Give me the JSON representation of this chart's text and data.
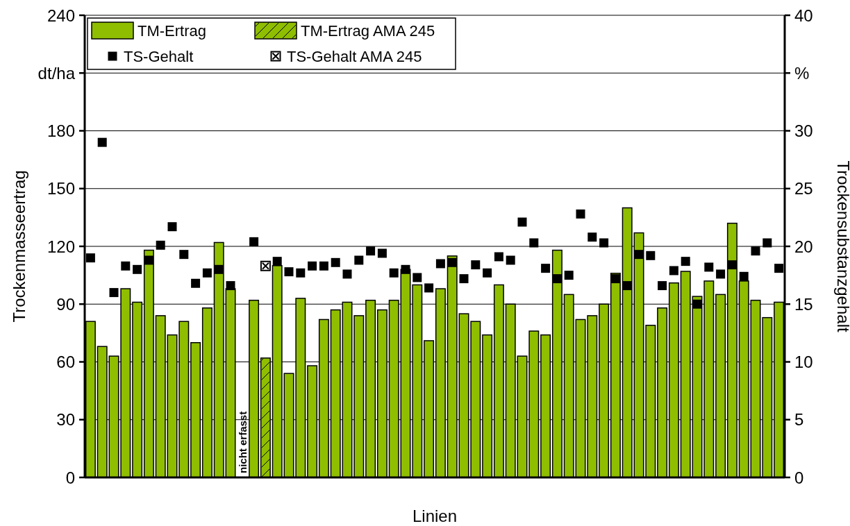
{
  "chart_data": {
    "type": "bar",
    "xlabel": "Linien",
    "ylabel": "Trockenmasseertrag",
    "y2label": "Trockensubstanzgehalt",
    "categories": [
      null,
      null,
      null,
      null,
      null,
      null,
      null,
      null,
      null,
      null,
      null,
      null,
      null,
      null,
      null,
      null,
      null,
      null,
      null,
      null,
      null,
      null,
      null,
      null,
      null,
      null,
      null,
      null,
      null,
      null,
      null,
      null,
      null,
      null,
      null,
      null,
      null,
      null,
      null,
      null,
      null,
      null,
      null,
      null,
      null,
      null,
      null,
      null,
      null,
      null,
      null,
      null,
      null,
      null,
      null,
      null,
      null,
      null,
      null,
      null
    ],
    "series": [
      {
        "name": "TM-Ertrag",
        "color": "#8fbe00",
        "values": [
          81,
          68,
          63,
          98,
          91,
          118,
          84,
          74,
          81,
          70,
          88,
          122,
          98,
          null,
          92,
          null,
          110,
          54,
          93,
          58,
          82,
          87,
          91,
          84,
          92,
          87,
          92,
          108,
          100,
          71,
          98,
          115,
          85,
          81,
          74,
          100,
          90,
          63,
          76,
          74,
          118,
          95,
          82,
          84,
          90,
          106,
          140,
          127,
          79,
          88,
          101,
          107,
          94,
          102,
          95,
          132,
          102,
          92,
          83,
          91
        ]
      },
      {
        "name": "TM-Ertrag AMA 245",
        "color": "#8fbe00",
        "values": [
          null,
          null,
          null,
          null,
          null,
          null,
          null,
          null,
          null,
          null,
          null,
          null,
          null,
          null,
          null,
          62,
          null,
          null,
          null,
          null,
          null,
          null,
          null,
          null,
          null,
          null,
          null,
          null,
          null,
          null,
          null,
          null,
          null,
          null,
          null,
          null,
          null,
          null,
          null,
          null,
          null,
          null,
          null,
          null,
          null,
          null,
          null,
          null,
          null,
          null,
          null,
          null,
          null,
          null,
          null,
          null,
          null,
          null,
          null,
          null
        ]
      },
      {
        "name": "TS-Gehalt",
        "type": "scatter",
        "axis": "y2",
        "marker": "square",
        "color": "#000000",
        "values": [
          19.0,
          29.0,
          16.0,
          18.3,
          18.0,
          18.8,
          20.1,
          21.7,
          19.3,
          16.8,
          17.7,
          18.0,
          16.6,
          null,
          20.4,
          null,
          18.7,
          17.8,
          17.7,
          18.3,
          18.3,
          18.6,
          17.6,
          18.8,
          19.6,
          19.4,
          17.7,
          18.0,
          17.3,
          16.4,
          18.5,
          18.6,
          17.2,
          18.4,
          17.7,
          19.1,
          18.8,
          22.1,
          20.3,
          18.1,
          17.2,
          17.5,
          22.8,
          20.8,
          20.3,
          17.2,
          16.6,
          19.3,
          19.2,
          16.6,
          17.9,
          18.7,
          15.0,
          18.2,
          17.6,
          18.4,
          17.4,
          19.6,
          20.3,
          18.1
        ]
      },
      {
        "name": "TS-Gehalt AMA 245",
        "type": "scatter",
        "axis": "y2",
        "marker": "cross",
        "color": "#000000",
        "values": [
          null,
          null,
          null,
          null,
          null,
          null,
          null,
          null,
          null,
          null,
          null,
          null,
          null,
          null,
          null,
          18.3,
          null,
          null,
          null,
          null,
          null,
          null,
          null,
          null,
          null,
          null,
          null,
          null,
          null,
          null,
          null,
          null,
          null,
          null,
          null,
          null,
          null,
          null,
          null,
          null,
          null,
          null,
          null,
          null,
          null,
          null,
          null,
          null,
          null,
          null,
          null,
          null,
          null,
          null,
          null,
          null,
          null,
          null,
          null,
          null
        ]
      }
    ],
    "ylim": [
      0,
      240
    ],
    "yticks": [
      0,
      30,
      60,
      90,
      120,
      150,
      180,
      {
        "value": 210,
        "label": "dt/ha"
      },
      240
    ],
    "y2lim": [
      0,
      40
    ],
    "y2ticks": [
      0,
      5,
      10,
      15,
      20,
      25,
      30,
      {
        "value": 35,
        "label": "%"
      },
      40
    ],
    "grid": "y",
    "legend": "top left",
    "annotations": [
      "nicht erfasst"
    ]
  }
}
